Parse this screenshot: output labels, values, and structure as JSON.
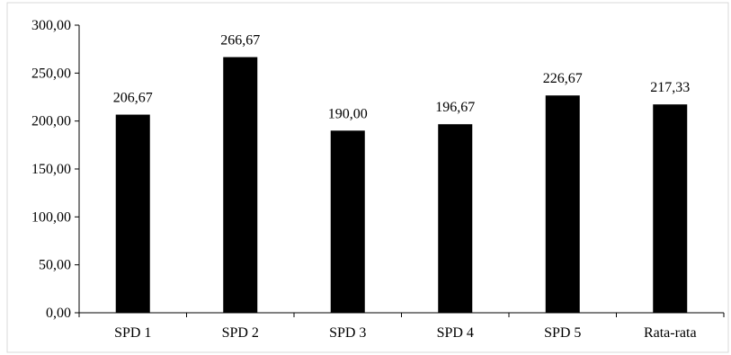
{
  "chart_data": {
    "type": "bar",
    "title": "",
    "xlabel": "",
    "ylabel": "",
    "categories": [
      "SPD 1",
      "SPD 2",
      "SPD 3",
      "SPD 4",
      "SPD 5",
      "Rata-rata"
    ],
    "values": [
      206.67,
      266.67,
      190.0,
      196.67,
      226.67,
      217.33
    ],
    "value_labels": [
      "206,67",
      "266,67",
      "190,00",
      "196,67",
      "226,67",
      "217,33"
    ],
    "ylim": [
      0,
      300
    ],
    "yticks": [
      0,
      50,
      100,
      150,
      200,
      250,
      300
    ],
    "ytick_labels": [
      "0,00",
      "50,00",
      "100,00",
      "150,00",
      "200,00",
      "250,00",
      "300,00"
    ],
    "grid": false,
    "legend": "none",
    "bar_color": "#000000"
  }
}
